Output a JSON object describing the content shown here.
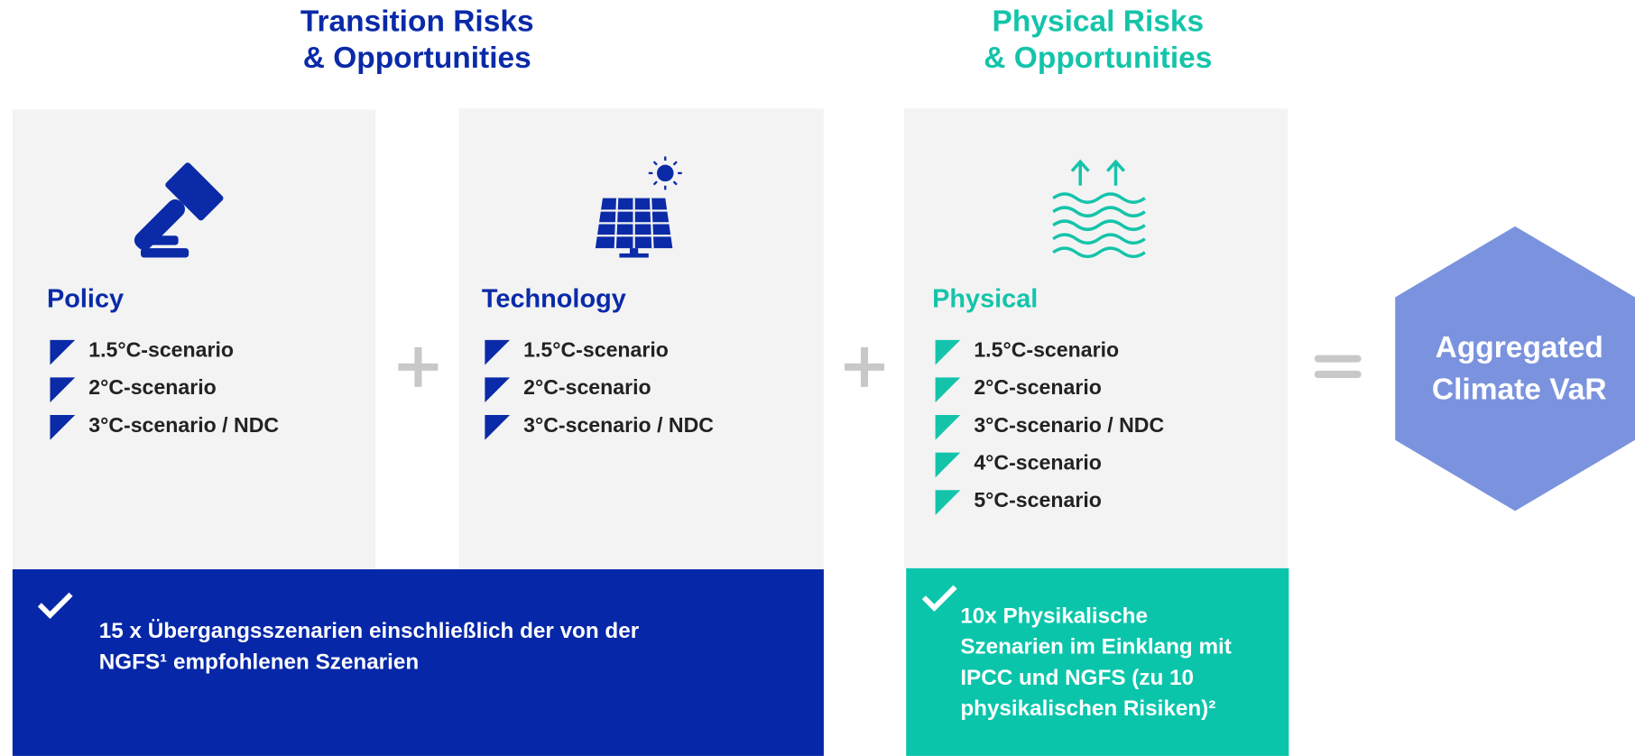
{
  "header": {
    "transition_title": [
      "Transition Risks",
      "& Opportunities"
    ],
    "physical_title": [
      "Physical Risks",
      "& Opportunities"
    ]
  },
  "cards": [
    {
      "title": "Policy",
      "items": [
        "1.5°C-scenario",
        "2°C-scenario",
        "3°C-scenario / NDC"
      ]
    },
    {
      "title": "Technology",
      "items": [
        "1.5°C-scenario",
        "2°C-scenario",
        "3°C-scenario / NDC"
      ]
    },
    {
      "title": "Physical",
      "items": [
        "1.5°C-scenario",
        "2°C-scenario",
        "3°C-scenario / NDC",
        "4°C-scenario",
        "5°C-scenario"
      ]
    }
  ],
  "result": {
    "label": [
      "Aggregated",
      "Climate VaR"
    ]
  },
  "banners": [
    {
      "lines": [
        "15 x Übergangsszenarien einschließlich der von der",
        "NGFS¹ empfohlenen Szenarien"
      ]
    },
    {
      "lines": [
        "10x Physikalische",
        "Szenarien im Einklang mit",
        "IPCC und NGFS (zu 10",
        "physikalischen Risiken)²"
      ]
    }
  ]
}
